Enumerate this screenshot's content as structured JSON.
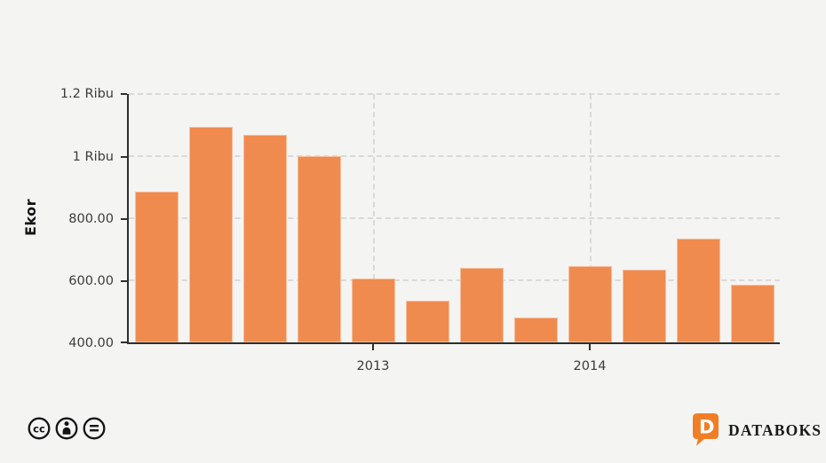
{
  "chart_data": {
    "type": "bar",
    "title": "",
    "xlabel": "",
    "ylabel": "Ekor",
    "ylim": [
      400,
      1200
    ],
    "y_tick_labels": [
      "1.2 Ribu",
      "1 Ribu",
      "800.00",
      "600.00",
      "400.00"
    ],
    "y_tick_values": [
      1200,
      1000,
      800,
      600,
      400
    ],
    "x_tick_labels": [
      "2013",
      "2014"
    ],
    "x_tick_bar_indices": [
      4,
      8
    ],
    "categories": [
      "",
      "",
      "",
      "",
      "2013",
      "",
      "",
      "",
      "2014",
      "",
      "",
      ""
    ],
    "values": [
      885,
      1095,
      1070,
      1000,
      605,
      535,
      640,
      480,
      645,
      635,
      733,
      587
    ],
    "bar_color": "#F08B4F",
    "grid": "dashed horizontal at each y tick; dashed vertical at year ticks",
    "legend_position": "none"
  },
  "footer": {
    "license_icons": [
      "cc-icon",
      "cc-by-icon",
      "cc-nd-icon"
    ],
    "cc_label": "cc",
    "brand_name": "DATABOKS",
    "brand_letter": "D"
  },
  "colors": {
    "background": "#F4F4F3",
    "bar": "#F08B4F",
    "axis": "#2E2E2E",
    "grid": "#D9D9D9",
    "tick_text": "#3B3B3B",
    "brand_orange": "#F07E26",
    "brand_text": "#191919",
    "icon_stroke": "#141414"
  }
}
